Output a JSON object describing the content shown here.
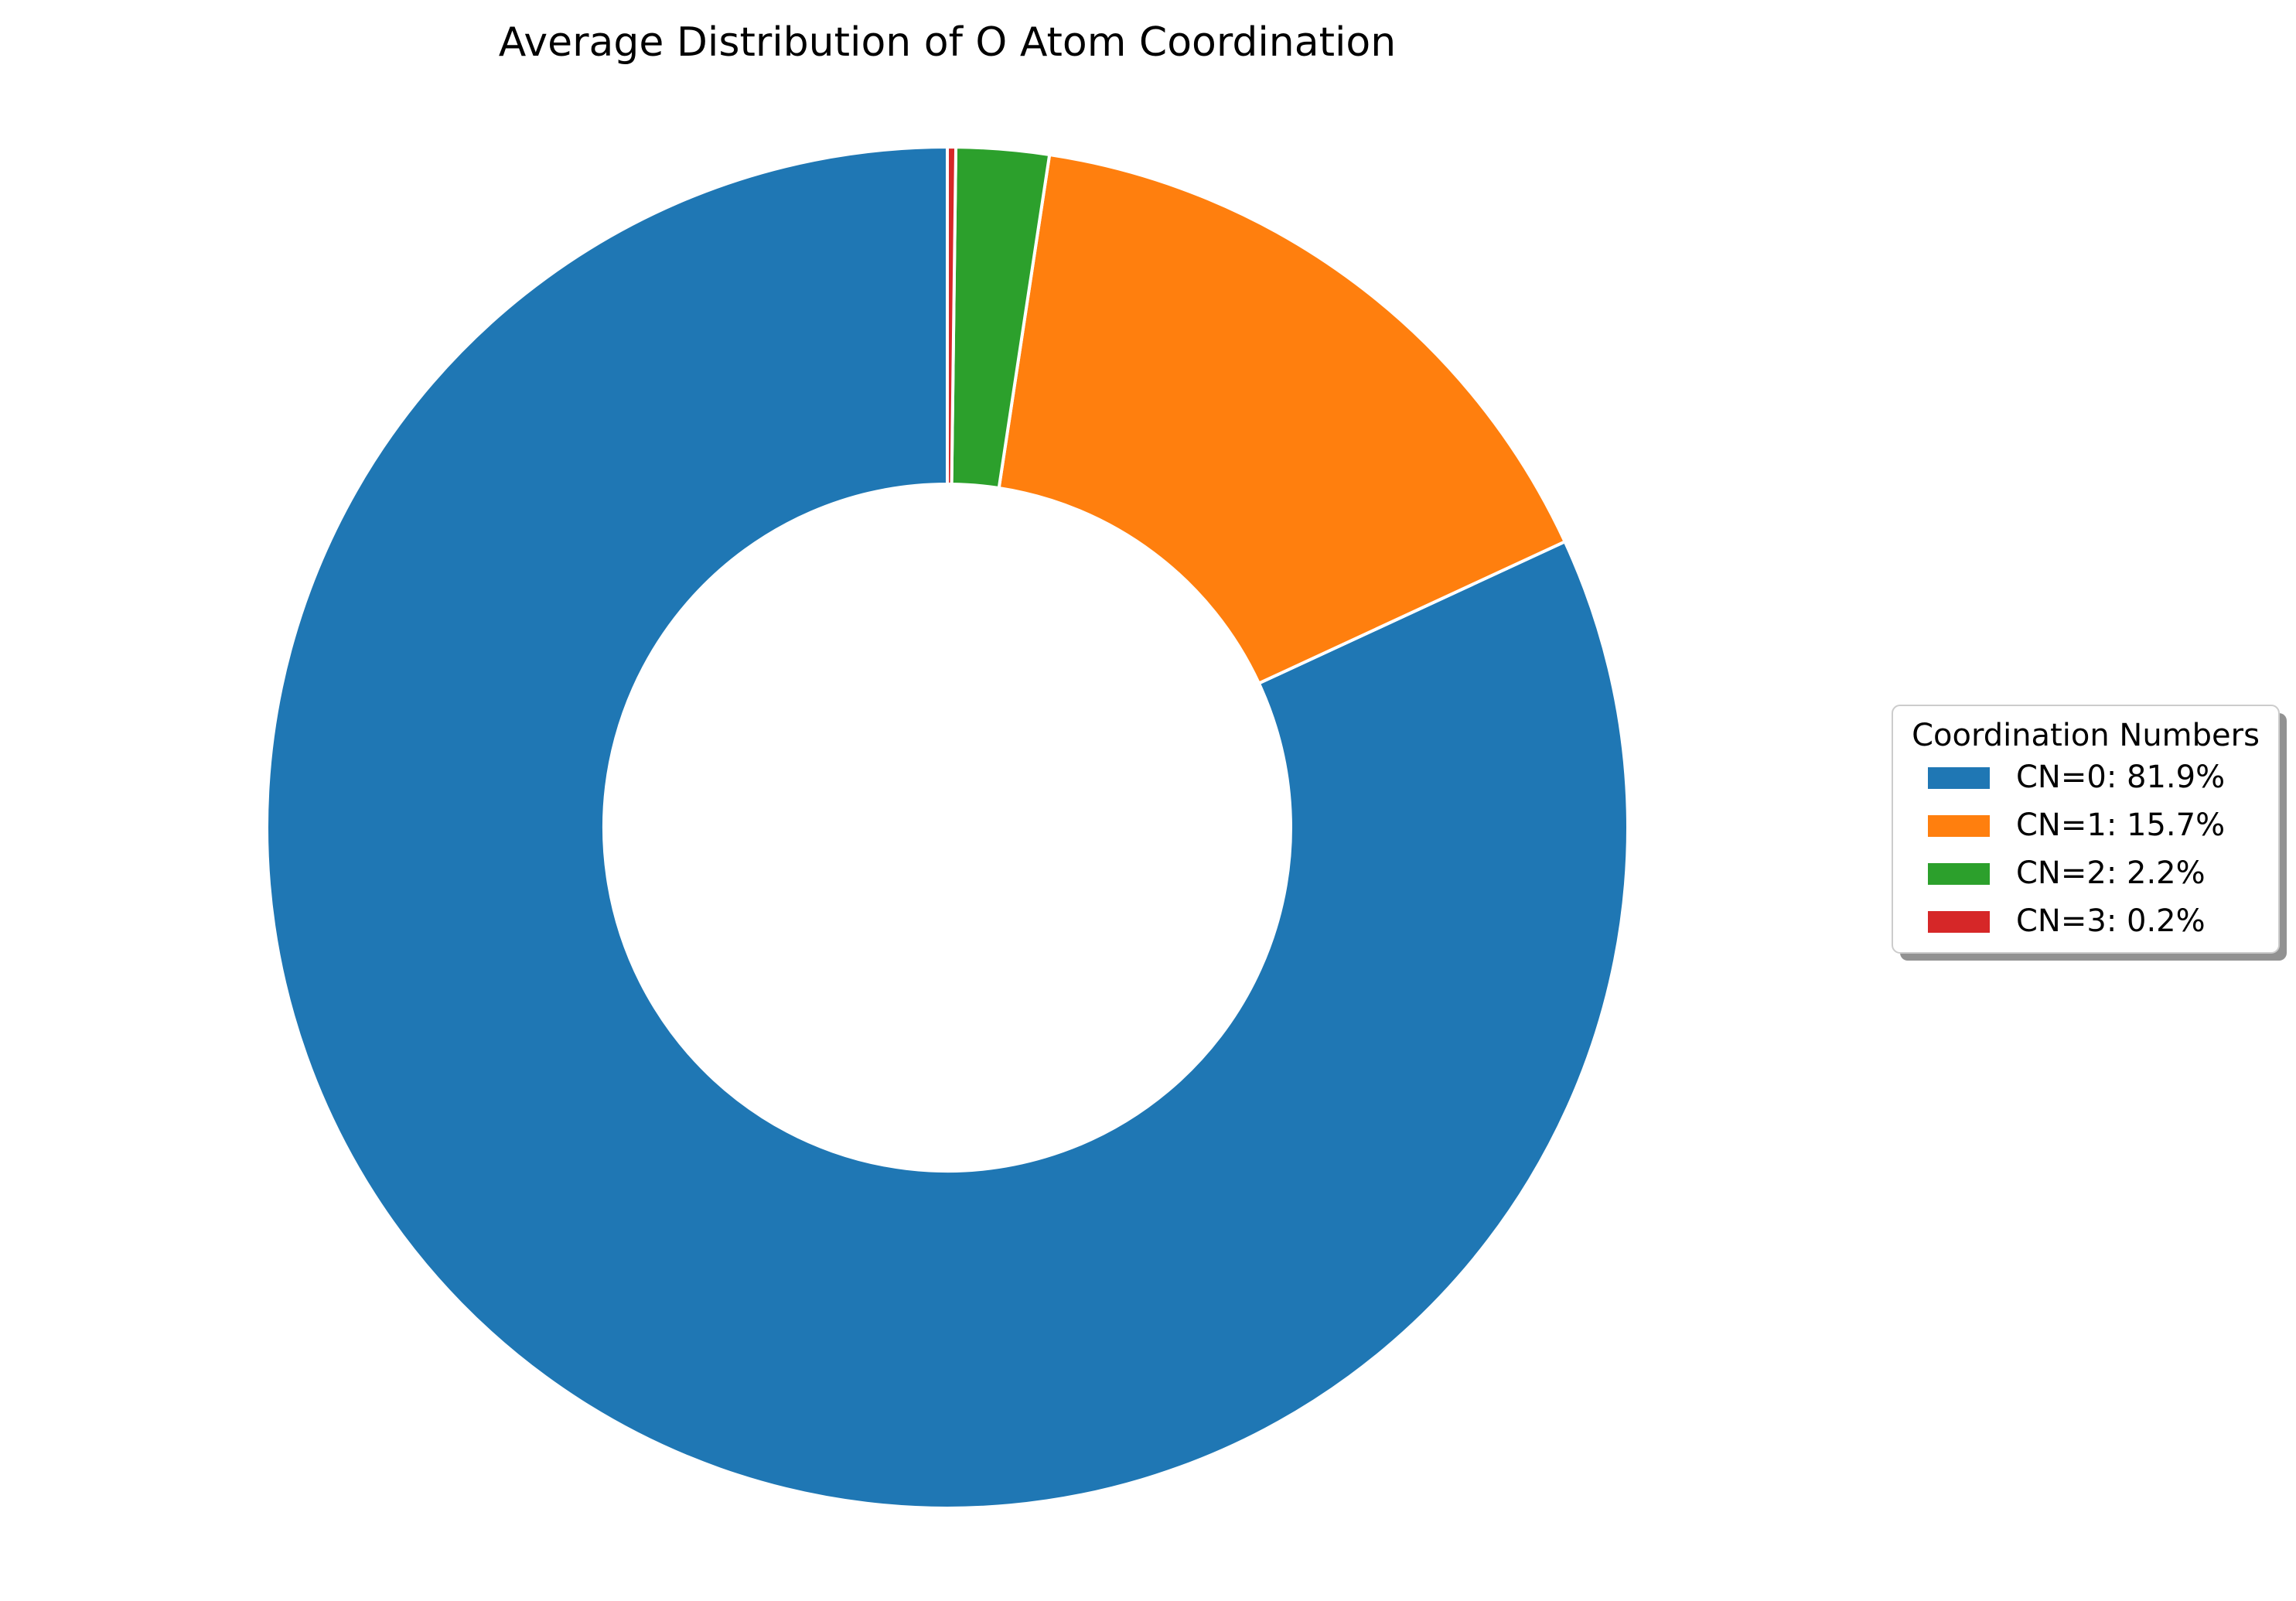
{
  "chart_data": {
    "type": "pie",
    "donut": true,
    "title": "Average Distribution of O Atom Coordination",
    "start_angle_deg": 90,
    "direction": "counterclockwise",
    "slices": [
      {
        "label": "CN=0",
        "value": 81.9,
        "legend": "CN=0: 81.9%",
        "color": "#1f77b4"
      },
      {
        "label": "CN=1",
        "value": 15.7,
        "legend": "CN=1: 15.7%",
        "color": "#ff7f0e"
      },
      {
        "label": "CN=2",
        "value": 2.2,
        "legend": "CN=2: 2.2%",
        "color": "#2ca02c"
      },
      {
        "label": "CN=3",
        "value": 0.2,
        "legend": "CN=3: 0.2%",
        "color": "#d62728"
      }
    ],
    "legend": {
      "title": "Coordination Numbers",
      "placement": "right"
    },
    "slice_edge_color": "#ffffff"
  }
}
